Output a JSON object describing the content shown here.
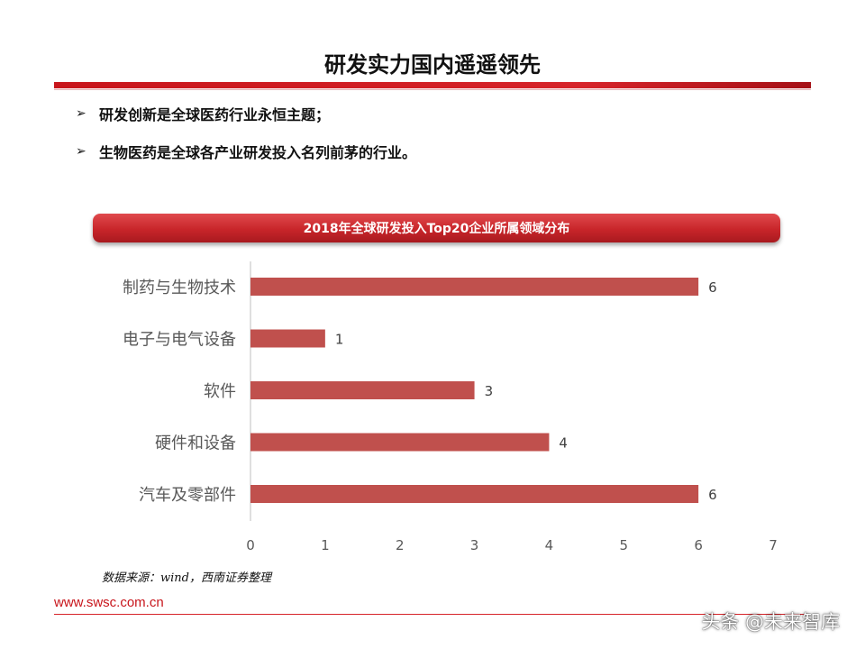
{
  "header": {
    "title": "研发实力国内遥遥领先"
  },
  "bullets": [
    {
      "marker": "➢",
      "text": "研发创新是全球医药行业永恒主题；"
    },
    {
      "marker": "➢",
      "text": "生物医药是全球各产业研发投入名列前茅的行业。"
    }
  ],
  "chart_banner": "2018年全球研发投入Top20企业所属领域分布",
  "chart_data": {
    "type": "bar",
    "orientation": "horizontal",
    "title": "2018年全球研发投入Top20企业所属领域分布",
    "xlabel": "",
    "ylabel": "",
    "categories": [
      "制药与生物技术",
      "电子与电气设备",
      "软件",
      "硬件和设备",
      "汽车及零部件"
    ],
    "values": [
      6,
      1,
      3,
      4,
      6
    ],
    "xlim": [
      0,
      7
    ],
    "xticks": [
      0,
      1,
      2,
      3,
      4,
      5,
      6,
      7
    ],
    "grid": false,
    "bar_color": "#c0504d",
    "data_labels": true
  },
  "source": "数据来源：wind，西南证券整理",
  "footer": {
    "url": "www.swsc.com.cn",
    "watermark": "头条 @未来智库"
  },
  "colors": {
    "accent": "#c8151b",
    "bar": "#c0504d"
  }
}
